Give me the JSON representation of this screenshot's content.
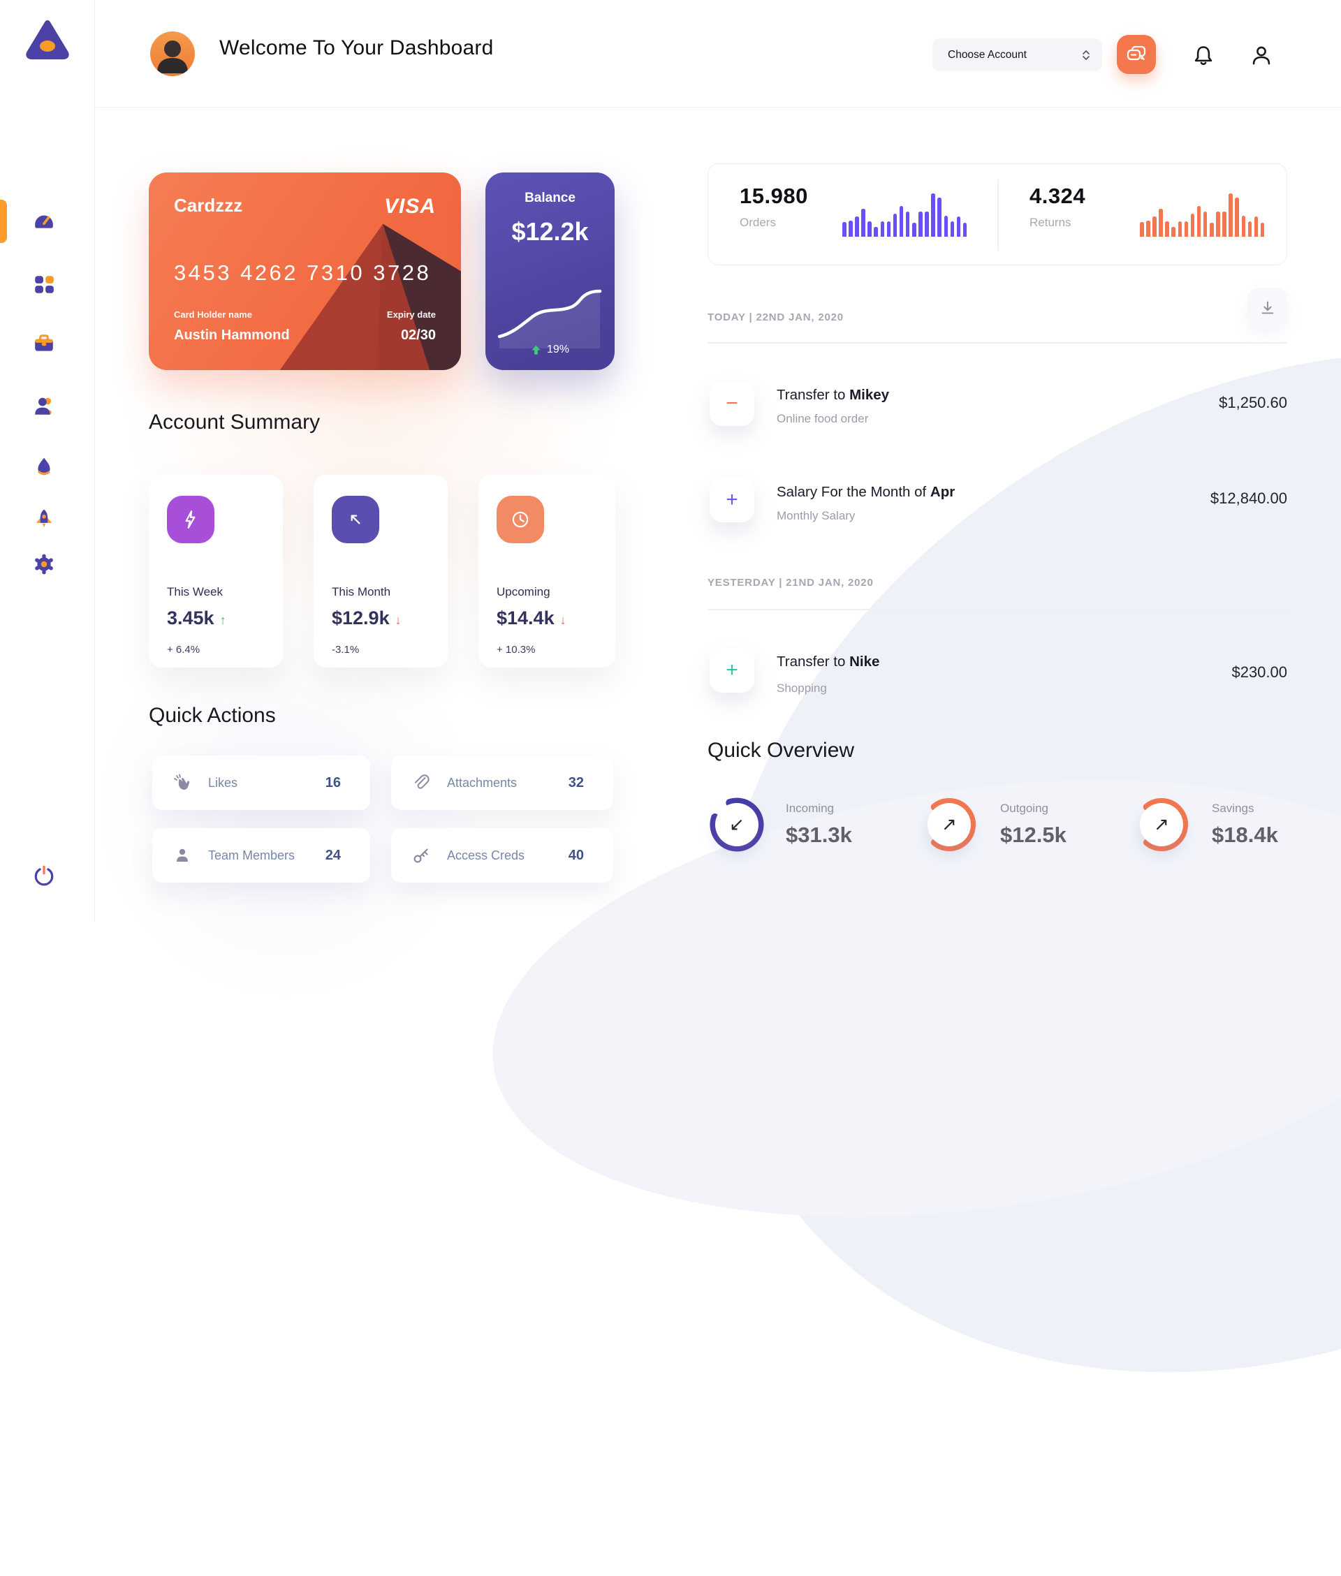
{
  "header": {
    "title": "Welcome To Your Dashboard",
    "account_dropdown": "Choose Account"
  },
  "sidebar": {
    "icons": [
      "dashboard",
      "apps",
      "briefcase",
      "team",
      "flame",
      "rocket",
      "settings"
    ],
    "logout_icon": "power",
    "active_item": "dashboard",
    "active_color": "#fc9d2b"
  },
  "credit_card": {
    "name": "Cardzzz",
    "brand": "VISA",
    "number": "3453 4262 7310 3728",
    "holder_label": "Card Holder name",
    "holder": "Austin Hammond",
    "expiry_label": "Expiry date",
    "expiry": "02/30",
    "bg_color": "#f26840"
  },
  "balance_card": {
    "label": "Balance",
    "value": "$12.2k",
    "change": "19%",
    "bg_color": "#534aa8",
    "change_color": "#3fc97e"
  },
  "stats": {
    "orders": {
      "value": "15.980",
      "label": "Orders"
    },
    "returns": {
      "value": "4.324",
      "label": "Returns"
    },
    "bar_values": [
      34,
      37,
      46,
      65,
      36,
      23,
      36,
      36,
      54,
      71,
      58,
      32,
      58,
      58,
      100,
      90,
      49,
      36,
      46,
      32
    ],
    "orders_color": "#6b4ef5",
    "returns_color": "#f4764e"
  },
  "account_summary": {
    "title": "Account Summary",
    "cards": [
      {
        "label": "This Week",
        "value": "3.45k",
        "arrow": "↑",
        "arrow_color": "#2ebd85",
        "percent": "+ 6.4%",
        "icon": "lightning",
        "icon_bg": "#a84fd9"
      },
      {
        "label": "This Month",
        "value": "$12.9k",
        "arrow": "↓",
        "arrow_color": "#e6685c",
        "percent": "-3.1%",
        "icon": "arrow-up-left",
        "icon_bg": "#5a4fb0"
      },
      {
        "label": "Upcoming",
        "value": "$14.4k",
        "arrow": "↓",
        "arrow_color": "#e6685c",
        "percent": "+ 10.3%",
        "icon": "clock",
        "icon_bg": "#f28a63"
      }
    ]
  },
  "quick_actions": {
    "title": "Quick Actions",
    "items": [
      {
        "label": "Likes",
        "count": "16",
        "icon": "clap"
      },
      {
        "label": "Attachments",
        "count": "32",
        "icon": "paperclip"
      },
      {
        "label": "Team Members",
        "count": "24",
        "icon": "member"
      },
      {
        "label": "Access Creds",
        "count": "40",
        "icon": "key"
      }
    ]
  },
  "transactions": {
    "groups": [
      {
        "header": "TODAY | 22ND JAN, 2020",
        "rows": [
          {
            "glyph": "−",
            "glyph_color": "#f4764e",
            "title_prefix": "Transfer to ",
            "title_bold": "Mikey",
            "subtitle": "Online food order",
            "amount": "$1,250.60"
          },
          {
            "glyph": "+",
            "glyph_color": "#6b5ae0",
            "title_prefix": "Salary For the Month of ",
            "title_bold": "Apr",
            "subtitle": "Monthly Salary",
            "amount": "$12,840.00"
          }
        ]
      },
      {
        "header": "YESTERDAY | 21ND JAN, 2020",
        "rows": [
          {
            "glyph": "+",
            "glyph_color": "#2ec5a2",
            "title_prefix": "Transfer to ",
            "title_bold": "Nike",
            "subtitle": "Shopping",
            "amount": "$230.00"
          }
        ]
      }
    ]
  },
  "quick_overview": {
    "title": "Quick Overview",
    "items": [
      {
        "label": "Incoming",
        "value": "$31.3k",
        "arrow": "↙",
        "ring_color": "#473ba6",
        "ring_pct": 85,
        "ring_rotate": -108
      },
      {
        "label": "Outgoing",
        "value": "$12.5k",
        "arrow": "↗",
        "ring_color": "#f4764e",
        "ring_pct": 72,
        "ring_rotate": -130
      },
      {
        "label": "Savings",
        "value": "$18.4k",
        "arrow": "↗",
        "ring_color": "#f4764e",
        "ring_pct": 72,
        "ring_rotate": -130
      }
    ]
  }
}
